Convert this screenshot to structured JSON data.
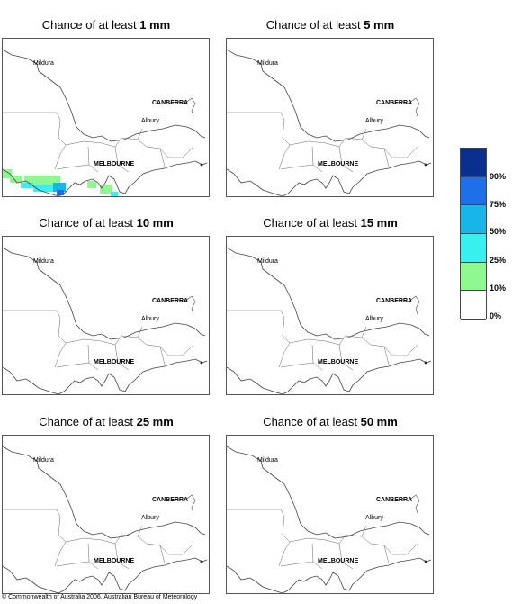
{
  "panels": [
    {
      "prefix": "Chance of at least",
      "amount": "1 mm",
      "has_rain": true
    },
    {
      "prefix": "Chance of at least",
      "amount": "5 mm",
      "has_rain": false
    },
    {
      "prefix": "Chance of at least",
      "amount": "10 mm",
      "has_rain": false
    },
    {
      "prefix": "Chance of at least",
      "amount": "15 mm",
      "has_rain": false
    },
    {
      "prefix": "Chance of at least",
      "amount": "25 mm",
      "has_rain": false
    },
    {
      "prefix": "Chance of at least",
      "amount": "50 mm",
      "has_rain": false
    }
  ],
  "cities": {
    "mildura": "Mildura",
    "canberra": "CANBERRA",
    "albury": "Albury",
    "melbourne": "MELBOURNE"
  },
  "legend": {
    "labels": [
      "90%",
      "75%",
      "50%",
      "25%",
      "10%",
      "0%"
    ],
    "colors": [
      "#0a2f8f",
      "#1e6fe8",
      "#18b6e8",
      "#38f0f0",
      "#90f890",
      "#ffffff"
    ]
  },
  "copyright": "© Commonwealth of Australia 2006, Australian Bureau of Meteorology"
}
